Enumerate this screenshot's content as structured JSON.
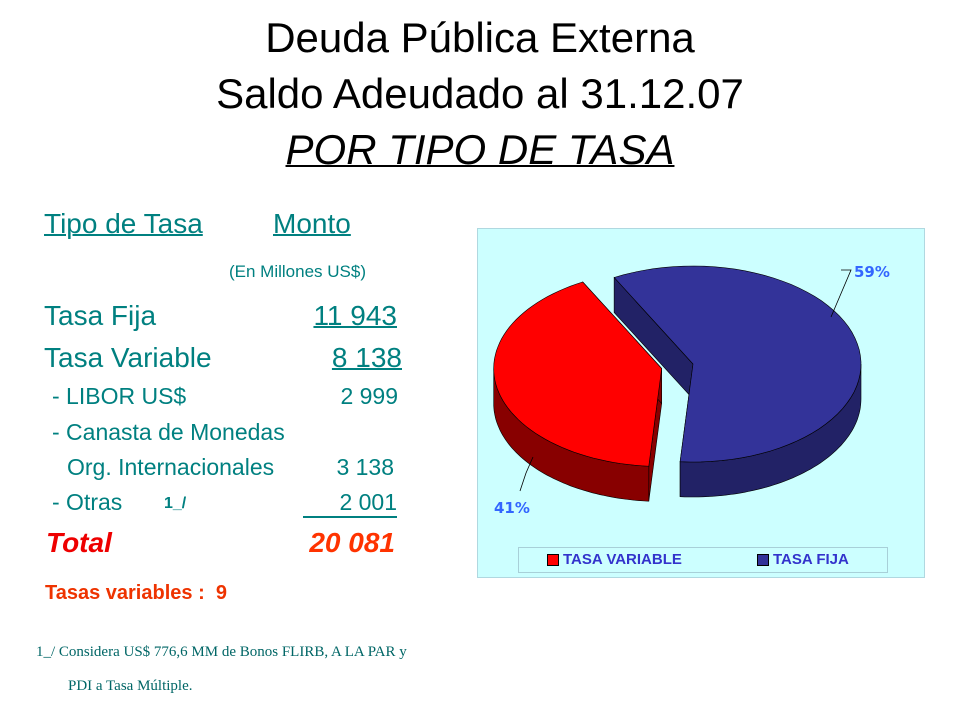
{
  "title": {
    "line1": "Deuda Pública Externa",
    "line2": "Saldo Adeudado al 31.12.07",
    "line3": "POR TIPO DE TASA"
  },
  "table": {
    "header_type": "Tipo de Tasa",
    "header_amount": "Monto",
    "unit": "(En Millones US$)",
    "rows": [
      {
        "label": "Tasa Fija",
        "value": "11 943"
      },
      {
        "label": "Tasa Variable",
        "value": "8 138"
      },
      {
        "label": "- LIBOR US$",
        "value": "2 999"
      },
      {
        "label": "- Canasta de Monedas",
        "value": ""
      },
      {
        "label": "Org. Internacionales",
        "value": "3 138"
      },
      {
        "label": "- Otras",
        "note": "1_/",
        "value": "2 001"
      }
    ],
    "total_label": "Total",
    "total_value": "20 081",
    "variable_rates": "Tasas variables :  9"
  },
  "footnote": {
    "line1": "1_/ Considera US$ 776,6 MM de Bonos FLIRB, A LA PAR y",
    "line2": "PDI  a Tasa Múltiple."
  },
  "chart_data": {
    "type": "pie",
    "three_d": true,
    "legend_position": "bottom",
    "categories": [
      "TASA VARIABLE",
      "TASA FIJA"
    ],
    "values": [
      41,
      59
    ],
    "labels": [
      "41%",
      "59%"
    ],
    "colors": [
      "#ff0000",
      "#333399"
    ],
    "background": "#ccffff"
  }
}
